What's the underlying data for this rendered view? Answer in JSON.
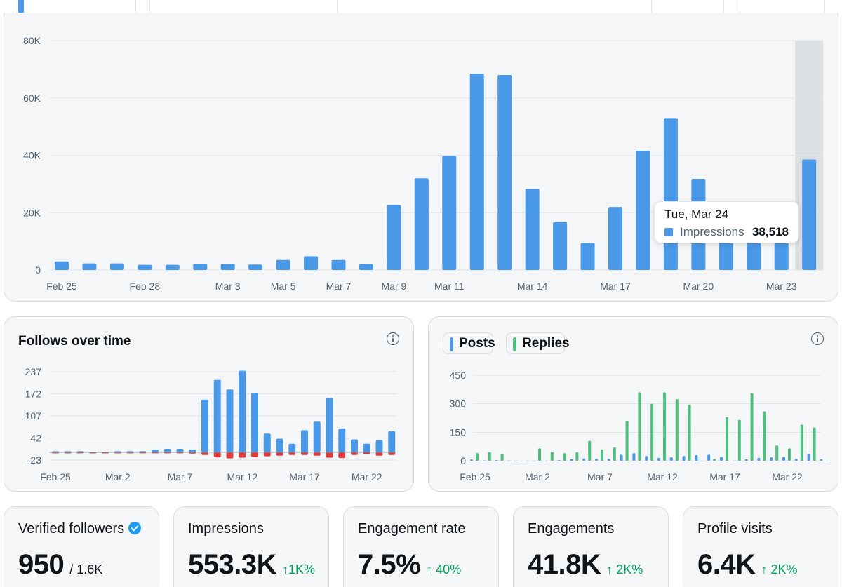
{
  "colors": {
    "impressions": "#4a99e9",
    "follows": "#4a99e9",
    "unfollows": "#e0393e",
    "posts": "#4a99e9",
    "replies": "#4fbf7f",
    "delta_positive": "#00a35c",
    "grid": "#e1e5e8",
    "axis_text": "#536471",
    "highlight": "#dcdfe2"
  },
  "icons": {
    "info": "info-icon",
    "verified": "verified-badge-icon",
    "arrow_up": "arrow-up-icon"
  },
  "tooltip": {
    "title": "Tue, Mar 24",
    "label": "Impressions",
    "value": "38,518"
  },
  "follows_card": {
    "title": "Follows over time"
  },
  "posts_card": {
    "legend_posts": "Posts",
    "legend_replies": "Replies"
  },
  "stats": [
    {
      "label": "Verified followers",
      "value": "950",
      "sub": "/ 1.6K",
      "delta": ""
    },
    {
      "label": "Impressions",
      "value": "553.3K",
      "sub": "",
      "delta": "↑1K%"
    },
    {
      "label": "Engagement rate",
      "value": "7.5%",
      "sub": "",
      "delta": "↑ 40%"
    },
    {
      "label": "Engagements",
      "value": "41.8K",
      "sub": "",
      "delta": "↑ 2K%"
    },
    {
      "label": "Profile visits",
      "value": "6.4K",
      "sub": "",
      "delta": "↑ 2K%"
    }
  ],
  "chart_data": [
    {
      "type": "bar",
      "series": [
        {
          "name": "Impressions",
          "values": [
            3000,
            2300,
            2300,
            1800,
            1800,
            2200,
            2100,
            1900,
            3500,
            4800,
            3500,
            2100,
            22700,
            32000,
            39800,
            68500,
            68000,
            28300,
            16700,
            9400,
            22000,
            41600,
            53000,
            31800,
            19500,
            17500,
            16000,
            38518
          ]
        }
      ],
      "x": [
        "Feb 25",
        "Feb 26",
        "Feb 27",
        "Feb 28",
        "Mar 1",
        "Mar 2",
        "Mar 3",
        "Mar 4",
        "Mar 5",
        "Mar 6",
        "Mar 7",
        "Mar 8",
        "Mar 9",
        "Mar 10",
        "Mar 11",
        "Mar 12",
        "Mar 13",
        "Mar 14",
        "Mar 15",
        "Mar 16",
        "Mar 17",
        "Mar 18",
        "Mar 19",
        "Mar 20",
        "Mar 21",
        "Mar 22",
        "Mar 23",
        "Mar 24"
      ],
      "x_tick_labels": [
        "Feb 25",
        "Feb 28",
        "Mar 3",
        "Mar 5",
        "Mar 7",
        "Mar 9",
        "Mar 11",
        "Mar 14",
        "Mar 17",
        "Mar 20",
        "Mar 23"
      ],
      "y_tick_labels": [
        "0",
        "20K",
        "40K",
        "60K",
        "80K"
      ],
      "ylim": [
        0,
        80000
      ],
      "grid": true,
      "highlighted": "Mar 24"
    },
    {
      "type": "bar",
      "title": "Follows over time",
      "series": [
        {
          "name": "Follows",
          "values": [
            3,
            3,
            3,
            0,
            0,
            3,
            3,
            3,
            8,
            10,
            10,
            8,
            155,
            213,
            185,
            240,
            175,
            55,
            40,
            25,
            65,
            90,
            160,
            70,
            38,
            25,
            35,
            62
          ]
        },
        {
          "name": "Unfollows",
          "values": [
            -1,
            -1,
            -1,
            -2,
            -2,
            -1,
            -1,
            -1,
            -2,
            -2,
            -3,
            -4,
            -8,
            -15,
            -18,
            -16,
            -14,
            -12,
            -10,
            -8,
            -8,
            -10,
            -16,
            -17,
            -8,
            -6,
            -10,
            -8
          ]
        }
      ],
      "x": [
        "Feb 25",
        "Feb 26",
        "Feb 27",
        "Feb 28",
        "Mar 1",
        "Mar 2",
        "Mar 3",
        "Mar 4",
        "Mar 5",
        "Mar 6",
        "Mar 7",
        "Mar 8",
        "Mar 9",
        "Mar 10",
        "Mar 11",
        "Mar 12",
        "Mar 13",
        "Mar 14",
        "Mar 15",
        "Mar 16",
        "Mar 17",
        "Mar 18",
        "Mar 19",
        "Mar 20",
        "Mar 21",
        "Mar 22",
        "Mar 23",
        "Mar 24"
      ],
      "x_tick_labels": [
        "Feb 25",
        "Mar 2",
        "Mar 7",
        "Mar 12",
        "Mar 17",
        "Mar 22"
      ],
      "y_tick_labels": [
        "-23",
        "42",
        "107",
        "172",
        "237"
      ],
      "y_ticks": [
        -23,
        42,
        107,
        172,
        237
      ],
      "ylim": [
        -23,
        237
      ],
      "grid": true
    },
    {
      "type": "bar",
      "series": [
        {
          "name": "Posts",
          "values": [
            7,
            2,
            3,
            1,
            0,
            0,
            0,
            3,
            8,
            12,
            10,
            10,
            32,
            40,
            25,
            15,
            18,
            25,
            30,
            32,
            20,
            0,
            8,
            15,
            18,
            20,
            10,
            35,
            8
          ]
        },
        {
          "name": "Replies",
          "values": [
            40,
            45,
            35,
            0,
            0,
            65,
            45,
            40,
            45,
            105,
            60,
            70,
            210,
            360,
            300,
            360,
            325,
            295,
            0,
            10,
            230,
            215,
            355,
            260,
            80,
            65,
            190,
            175,
            0
          ]
        }
      ],
      "x": [
        "Feb 25",
        "Feb 26",
        "Feb 27",
        "Feb 28",
        "Mar 1",
        "Mar 2",
        "Mar 3",
        "Mar 4",
        "Mar 5",
        "Mar 6",
        "Mar 7",
        "Mar 8",
        "Mar 9",
        "Mar 10",
        "Mar 11",
        "Mar 12",
        "Mar 13",
        "Mar 14",
        "Mar 15",
        "Mar 16",
        "Mar 17",
        "Mar 18",
        "Mar 19",
        "Mar 20",
        "Mar 21",
        "Mar 22",
        "Mar 23",
        "Mar 24",
        "Mar 25"
      ],
      "x_tick_labels": [
        "Feb 25",
        "Mar 2",
        "Mar 7",
        "Mar 12",
        "Mar 17",
        "Mar 22"
      ],
      "y_tick_labels": [
        "0",
        "150",
        "300",
        "450"
      ],
      "ylim": [
        0,
        450
      ],
      "grid": true
    }
  ]
}
